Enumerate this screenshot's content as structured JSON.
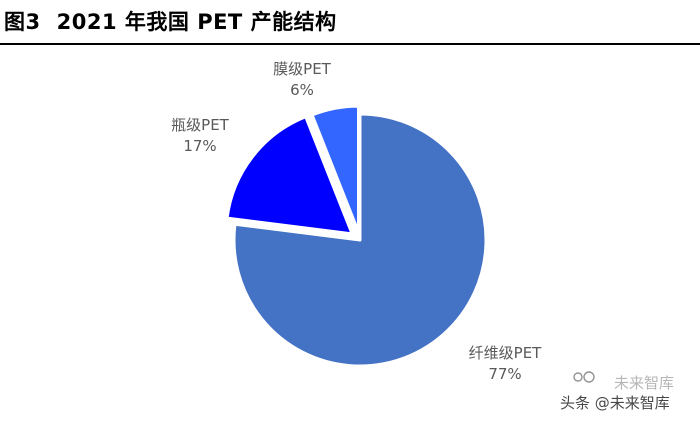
{
  "figure": {
    "number": "图3",
    "title": "2021 年我国 PET 产能结构"
  },
  "chart_data": {
    "type": "pie",
    "title": "2021 年我国 PET 产能结构",
    "slices": [
      {
        "name": "纤维级PET",
        "value": 77,
        "label": "77%",
        "color": "#4472C4"
      },
      {
        "name": "瓶级PET",
        "value": 17,
        "label": "17%",
        "color": "#0000FF"
      },
      {
        "name": "膜级PET",
        "value": 6,
        "label": "6%",
        "color": "#3366FF"
      }
    ],
    "start_angle": "12 o'clock, clockwise",
    "legend": "none",
    "exploded_slices": [
      "瓶级PET",
      "膜级PET"
    ]
  },
  "watermark": {
    "text": "头条 @未来智库",
    "ghost_text": "未来智库"
  }
}
